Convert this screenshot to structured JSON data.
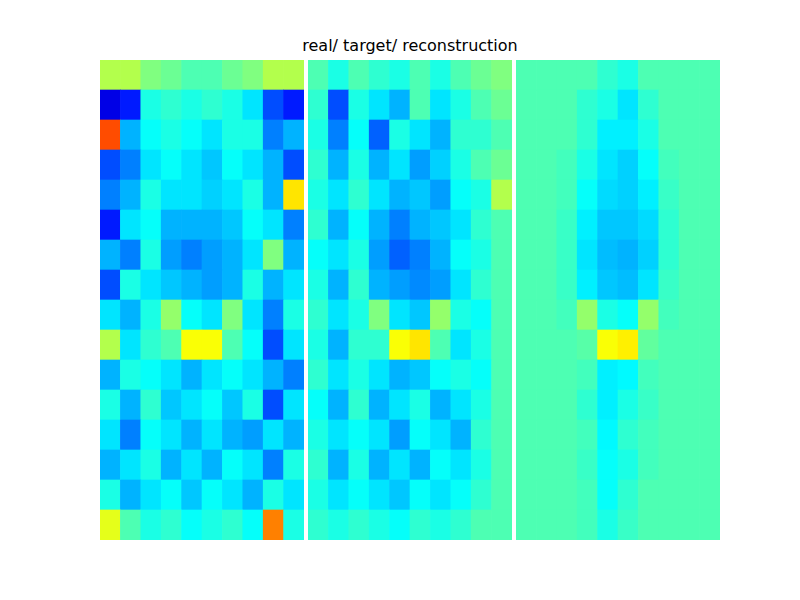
{
  "chart_data": {
    "type": "heatmap",
    "title": "real/ target/ reconstruction",
    "tick_labels": false,
    "color": "jet",
    "color_range": [
      0,
      1
    ],
    "panels": [
      {
        "cells": [
          [
            0.55,
            0.55,
            0.5,
            0.48,
            0.45,
            0.45,
            0.48,
            0.5,
            0.55,
            0.55
          ],
          [
            0.1,
            0.15,
            0.4,
            0.42,
            0.4,
            0.42,
            0.4,
            0.35,
            0.2,
            0.15
          ],
          [
            0.8,
            0.3,
            0.38,
            0.4,
            0.38,
            0.35,
            0.4,
            0.4,
            0.25,
            0.3
          ],
          [
            0.2,
            0.25,
            0.35,
            0.38,
            0.35,
            0.32,
            0.38,
            0.35,
            0.3,
            0.2
          ],
          [
            0.25,
            0.3,
            0.4,
            0.35,
            0.35,
            0.33,
            0.35,
            0.4,
            0.3,
            0.65
          ],
          [
            0.15,
            0.35,
            0.38,
            0.3,
            0.3,
            0.3,
            0.32,
            0.38,
            0.35,
            0.25
          ],
          [
            0.3,
            0.25,
            0.4,
            0.28,
            0.25,
            0.28,
            0.3,
            0.35,
            0.5,
            0.3
          ],
          [
            0.2,
            0.4,
            0.35,
            0.32,
            0.3,
            0.28,
            0.3,
            0.4,
            0.3,
            0.35
          ],
          [
            0.35,
            0.3,
            0.4,
            0.52,
            0.38,
            0.35,
            0.5,
            0.35,
            0.25,
            0.4
          ],
          [
            0.55,
            0.35,
            0.42,
            0.45,
            0.62,
            0.62,
            0.45,
            0.38,
            0.2,
            0.35
          ],
          [
            0.3,
            0.4,
            0.38,
            0.35,
            0.3,
            0.35,
            0.38,
            0.35,
            0.3,
            0.25
          ],
          [
            0.4,
            0.3,
            0.42,
            0.32,
            0.35,
            0.38,
            0.32,
            0.4,
            0.2,
            0.35
          ],
          [
            0.35,
            0.25,
            0.38,
            0.35,
            0.3,
            0.35,
            0.3,
            0.28,
            0.35,
            0.3
          ],
          [
            0.3,
            0.35,
            0.4,
            0.3,
            0.35,
            0.3,
            0.38,
            0.35,
            0.25,
            0.4
          ],
          [
            0.4,
            0.3,
            0.35,
            0.38,
            0.32,
            0.38,
            0.35,
            0.3,
            0.4,
            0.35
          ],
          [
            0.6,
            0.45,
            0.4,
            0.42,
            0.38,
            0.4,
            0.42,
            0.38,
            0.75,
            0.4
          ]
        ]
      },
      {
        "cells": [
          [
            0.45,
            0.4,
            0.45,
            0.42,
            0.4,
            0.45,
            0.4,
            0.45,
            0.48,
            0.5
          ],
          [
            0.42,
            0.2,
            0.4,
            0.35,
            0.3,
            0.45,
            0.35,
            0.4,
            0.45,
            0.48
          ],
          [
            0.4,
            0.25,
            0.38,
            0.22,
            0.4,
            0.35,
            0.3,
            0.42,
            0.42,
            0.45
          ],
          [
            0.42,
            0.3,
            0.4,
            0.3,
            0.35,
            0.28,
            0.33,
            0.4,
            0.45,
            0.48
          ],
          [
            0.4,
            0.35,
            0.42,
            0.35,
            0.3,
            0.32,
            0.28,
            0.38,
            0.4,
            0.55
          ],
          [
            0.42,
            0.3,
            0.38,
            0.3,
            0.25,
            0.3,
            0.32,
            0.35,
            0.42,
            0.45
          ],
          [
            0.38,
            0.35,
            0.4,
            0.28,
            0.22,
            0.25,
            0.3,
            0.38,
            0.4,
            0.45
          ],
          [
            0.4,
            0.3,
            0.42,
            0.3,
            0.28,
            0.26,
            0.28,
            0.35,
            0.42,
            0.45
          ],
          [
            0.42,
            0.35,
            0.4,
            0.5,
            0.35,
            0.32,
            0.52,
            0.4,
            0.38,
            0.45
          ],
          [
            0.4,
            0.3,
            0.42,
            0.42,
            0.62,
            0.65,
            0.45,
            0.35,
            0.4,
            0.45
          ],
          [
            0.42,
            0.35,
            0.4,
            0.35,
            0.3,
            0.32,
            0.38,
            0.4,
            0.38,
            0.45
          ],
          [
            0.38,
            0.3,
            0.42,
            0.3,
            0.35,
            0.4,
            0.3,
            0.35,
            0.4,
            0.45
          ],
          [
            0.4,
            0.35,
            0.38,
            0.35,
            0.28,
            0.38,
            0.35,
            0.3,
            0.42,
            0.45
          ],
          [
            0.42,
            0.3,
            0.4,
            0.3,
            0.35,
            0.3,
            0.38,
            0.35,
            0.4,
            0.45
          ],
          [
            0.4,
            0.35,
            0.38,
            0.35,
            0.32,
            0.38,
            0.35,
            0.38,
            0.42,
            0.45
          ],
          [
            0.42,
            0.4,
            0.42,
            0.4,
            0.38,
            0.42,
            0.4,
            0.42,
            0.45,
            0.45
          ]
        ]
      },
      {
        "cells": [
          [
            0.45,
            0.45,
            0.45,
            0.45,
            0.42,
            0.4,
            0.45,
            0.45,
            0.45,
            0.45
          ],
          [
            0.45,
            0.45,
            0.45,
            0.42,
            0.4,
            0.35,
            0.42,
            0.45,
            0.45,
            0.45
          ],
          [
            0.45,
            0.45,
            0.45,
            0.42,
            0.36,
            0.36,
            0.4,
            0.45,
            0.45,
            0.45
          ],
          [
            0.45,
            0.45,
            0.44,
            0.4,
            0.35,
            0.33,
            0.38,
            0.44,
            0.45,
            0.45
          ],
          [
            0.45,
            0.45,
            0.44,
            0.38,
            0.34,
            0.33,
            0.36,
            0.43,
            0.45,
            0.45
          ],
          [
            0.45,
            0.45,
            0.43,
            0.36,
            0.32,
            0.32,
            0.34,
            0.42,
            0.45,
            0.45
          ],
          [
            0.45,
            0.45,
            0.43,
            0.35,
            0.31,
            0.3,
            0.33,
            0.42,
            0.45,
            0.45
          ],
          [
            0.45,
            0.45,
            0.43,
            0.36,
            0.32,
            0.31,
            0.35,
            0.43,
            0.45,
            0.45
          ],
          [
            0.45,
            0.45,
            0.44,
            0.52,
            0.4,
            0.38,
            0.52,
            0.44,
            0.45,
            0.45
          ],
          [
            0.45,
            0.45,
            0.45,
            0.46,
            0.62,
            0.64,
            0.47,
            0.45,
            0.45,
            0.45
          ],
          [
            0.45,
            0.45,
            0.45,
            0.44,
            0.36,
            0.37,
            0.44,
            0.45,
            0.45,
            0.45
          ],
          [
            0.45,
            0.45,
            0.45,
            0.42,
            0.36,
            0.4,
            0.43,
            0.45,
            0.45,
            0.45
          ],
          [
            0.45,
            0.45,
            0.45,
            0.44,
            0.37,
            0.42,
            0.44,
            0.45,
            0.45,
            0.45
          ],
          [
            0.45,
            0.45,
            0.45,
            0.43,
            0.38,
            0.4,
            0.44,
            0.45,
            0.45,
            0.45
          ],
          [
            0.45,
            0.45,
            0.45,
            0.44,
            0.38,
            0.42,
            0.45,
            0.45,
            0.45,
            0.45
          ],
          [
            0.45,
            0.45,
            0.45,
            0.44,
            0.4,
            0.43,
            0.45,
            0.45,
            0.45,
            0.45
          ]
        ]
      }
    ]
  }
}
